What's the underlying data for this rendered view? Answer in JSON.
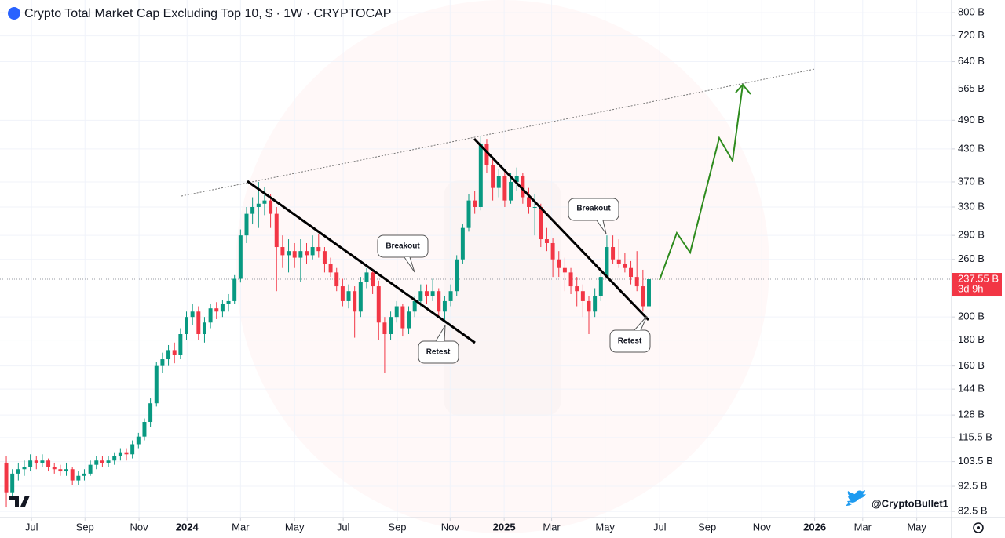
{
  "chart_data": {
    "type": "candlestick",
    "title": "Crypto Total Market Cap Excluding Top 10, $ · 1W · CRYPTOCAP",
    "up_color": "#089981",
    "down_color": "#f23645",
    "log_scale": true,
    "grid": true,
    "xlim": [
      -1.05,
      157.4
    ],
    "xticks": [
      {
        "value": 4.2,
        "label": "Jul"
      },
      {
        "value": 13.1,
        "label": "Sep"
      },
      {
        "value": 22.1,
        "label": "Nov"
      },
      {
        "value": 30.1,
        "label": "2024"
      },
      {
        "value": 39.0,
        "label": "Mar"
      },
      {
        "value": 48.0,
        "label": "May"
      },
      {
        "value": 56.1,
        "label": "Jul"
      },
      {
        "value": 65.1,
        "label": "Sep"
      },
      {
        "value": 73.9,
        "label": "Nov"
      },
      {
        "value": 82.9,
        "label": "2025"
      },
      {
        "value": 90.8,
        "label": "Mar"
      },
      {
        "value": 99.7,
        "label": "May"
      },
      {
        "value": 108.8,
        "label": "Jul"
      },
      {
        "value": 116.7,
        "label": "Sep"
      },
      {
        "value": 125.8,
        "label": "Nov"
      },
      {
        "value": 134.6,
        "label": "2026"
      },
      {
        "value": 142.6,
        "label": "Mar"
      },
      {
        "value": 151.6,
        "label": "May"
      }
    ],
    "ylim": [
      80.2,
      847.3
    ],
    "yticks": [
      {
        "value": 800,
        "label": "800 B"
      },
      {
        "value": 720,
        "label": "720 B"
      },
      {
        "value": 640,
        "label": "640 B"
      },
      {
        "value": 565,
        "label": "565 B"
      },
      {
        "value": 490,
        "label": "490 B"
      },
      {
        "value": 430,
        "label": "430 B"
      },
      {
        "value": 370,
        "label": "370 B"
      },
      {
        "value": 330,
        "label": "330 B"
      },
      {
        "value": 290,
        "label": "290 B"
      },
      {
        "value": 260,
        "label": "260 B"
      },
      {
        "value": 200,
        "label": "200 B"
      },
      {
        "value": 180,
        "label": "180 B"
      },
      {
        "value": 160,
        "label": "160 B"
      },
      {
        "value": 144,
        "label": "144 B"
      },
      {
        "value": 128,
        "label": "128 B"
      },
      {
        "value": 115.5,
        "label": "115.5 B"
      },
      {
        "value": 103.5,
        "label": "103.5 B"
      },
      {
        "value": 92.5,
        "label": "92.5 B"
      },
      {
        "value": 82.5,
        "label": "82.5 B"
      }
    ],
    "last_price": {
      "value": 237.55,
      "label": "237.55 B"
    },
    "countdown": "3d 9h",
    "annotations": [
      "Breakout",
      "Retest",
      "Breakout",
      "Retest"
    ],
    "watermark": "@CryptoBullet1",
    "ohlc": [
      [
        103,
        106,
        84,
        90
      ],
      [
        90,
        100,
        88,
        98
      ],
      [
        98,
        103,
        95,
        100
      ],
      [
        100,
        104,
        97,
        101
      ],
      [
        101,
        107,
        99,
        104
      ],
      [
        104,
        106,
        100,
        103
      ],
      [
        103,
        107,
        101,
        104
      ],
      [
        104,
        105,
        99,
        101
      ],
      [
        101,
        103,
        98,
        100
      ],
      [
        100,
        102,
        97,
        99
      ],
      [
        99,
        103,
        97,
        100
      ],
      [
        100,
        101,
        93,
        95
      ],
      [
        95,
        99,
        93,
        97
      ],
      [
        97,
        100,
        95,
        98
      ],
      [
        98,
        104,
        97,
        102
      ],
      [
        102,
        106,
        100,
        104
      ],
      [
        104,
        106,
        101,
        103
      ],
      [
        103,
        106,
        101,
        104
      ],
      [
        104,
        108,
        102,
        106
      ],
      [
        106,
        110,
        104,
        108
      ],
      [
        108,
        110,
        104,
        107
      ],
      [
        107,
        114,
        105,
        112
      ],
      [
        112,
        118,
        110,
        116
      ],
      [
        116,
        126,
        114,
        124
      ],
      [
        124,
        138,
        121,
        135
      ],
      [
        135,
        163,
        133,
        160
      ],
      [
        160,
        170,
        155,
        165
      ],
      [
        165,
        176,
        160,
        172
      ],
      [
        172,
        178,
        162,
        168
      ],
      [
        168,
        190,
        165,
        185
      ],
      [
        185,
        205,
        180,
        200
      ],
      [
        200,
        212,
        193,
        205
      ],
      [
        205,
        210,
        180,
        185
      ],
      [
        185,
        200,
        178,
        195
      ],
      [
        195,
        212,
        190,
        208
      ],
      [
        208,
        214,
        198,
        205
      ],
      [
        205,
        216,
        200,
        212
      ],
      [
        212,
        222,
        205,
        215
      ],
      [
        215,
        242,
        212,
        238
      ],
      [
        238,
        298,
        234,
        290
      ],
      [
        290,
        330,
        280,
        320
      ],
      [
        320,
        345,
        305,
        330
      ],
      [
        330,
        370,
        300,
        335
      ],
      [
        335,
        362,
        318,
        340
      ],
      [
        340,
        350,
        300,
        320
      ],
      [
        320,
        330,
        225,
        275
      ],
      [
        275,
        290,
        250,
        265
      ],
      [
        265,
        285,
        245,
        270
      ],
      [
        270,
        280,
        250,
        262
      ],
      [
        262,
        285,
        235,
        270
      ],
      [
        270,
        280,
        255,
        265
      ],
      [
        265,
        290,
        260,
        275
      ],
      [
        275,
        292,
        262,
        270
      ],
      [
        270,
        275,
        245,
        255
      ],
      [
        255,
        262,
        240,
        245
      ],
      [
        245,
        250,
        225,
        230
      ],
      [
        230,
        238,
        210,
        215
      ],
      [
        215,
        232,
        208,
        225
      ],
      [
        225,
        230,
        182,
        205
      ],
      [
        205,
        240,
        200,
        235
      ],
      [
        235,
        250,
        228,
        245
      ],
      [
        245,
        248,
        222,
        230
      ],
      [
        230,
        236,
        180,
        195
      ],
      [
        195,
        200,
        155,
        185
      ],
      [
        185,
        205,
        180,
        200
      ],
      [
        200,
        215,
        195,
        210
      ],
      [
        210,
        212,
        183,
        190
      ],
      [
        190,
        210,
        185,
        205
      ],
      [
        205,
        220,
        200,
        215
      ],
      [
        215,
        232,
        210,
        225
      ],
      [
        225,
        232,
        212,
        220
      ],
      [
        220,
        238,
        215,
        225
      ],
      [
        225,
        228,
        200,
        205
      ],
      [
        205,
        220,
        195,
        215
      ],
      [
        215,
        232,
        210,
        225
      ],
      [
        225,
        265,
        220,
        260
      ],
      [
        260,
        305,
        255,
        300
      ],
      [
        300,
        350,
        295,
        340
      ],
      [
        340,
        355,
        320,
        330
      ],
      [
        330,
        455,
        325,
        440
      ],
      [
        440,
        450,
        385,
        400
      ],
      [
        400,
        410,
        340,
        360
      ],
      [
        360,
        392,
        345,
        380
      ],
      [
        380,
        388,
        330,
        340
      ],
      [
        340,
        385,
        335,
        370
      ],
      [
        370,
        395,
        355,
        380
      ],
      [
        380,
        385,
        335,
        345
      ],
      [
        345,
        360,
        320,
        330
      ],
      [
        330,
        350,
        290,
        330
      ],
      [
        330,
        335,
        275,
        285
      ],
      [
        285,
        300,
        270,
        280
      ],
      [
        280,
        286,
        240,
        260
      ],
      [
        260,
        270,
        240,
        250
      ],
      [
        250,
        262,
        225,
        245
      ],
      [
        245,
        250,
        222,
        230
      ],
      [
        230,
        240,
        210,
        225
      ],
      [
        225,
        232,
        200,
        215
      ],
      [
        215,
        220,
        185,
        205
      ],
      [
        205,
        228,
        200,
        220
      ],
      [
        220,
        245,
        215,
        240
      ],
      [
        240,
        290,
        238,
        275
      ],
      [
        275,
        290,
        255,
        260
      ],
      [
        260,
        285,
        250,
        255
      ],
      [
        255,
        268,
        245,
        250
      ],
      [
        250,
        258,
        232,
        240
      ],
      [
        240,
        270,
        225,
        230
      ],
      [
        230,
        248,
        205,
        210
      ],
      [
        210,
        245,
        208,
        237.55
      ]
    ]
  }
}
